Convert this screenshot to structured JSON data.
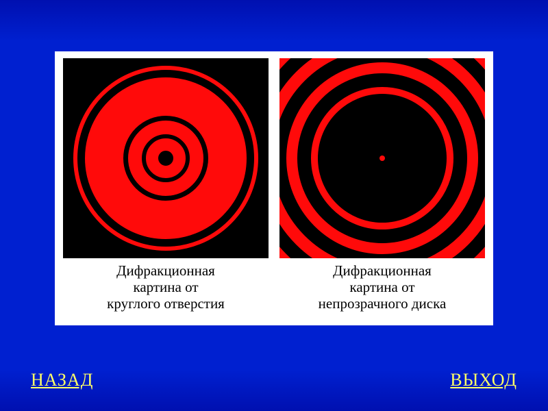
{
  "background": {
    "gradient_top": "#0010b0",
    "gradient_mid": "#0020d0"
  },
  "panel": {
    "background": "#ffffff"
  },
  "colors": {
    "ring_red": "#ff0a0a",
    "black": "#000000",
    "link": "#ffff66"
  },
  "figures": {
    "left": {
      "caption": "Дифракционная\nкартина от\nкруглого отверстия",
      "image_background": "#000000",
      "rings": [
        {
          "outer_diameter": 270,
          "border_width": 6,
          "color": "#ff0a0a"
        },
        {
          "outer_diameter": 236,
          "border_width": 56,
          "color": "#ff0a0a"
        },
        {
          "outer_diameter": 110,
          "border_width": 20,
          "color": "#ff0a0a"
        },
        {
          "outer_diameter": 58,
          "border_width": 18,
          "color": "#ff0a0a"
        }
      ]
    },
    "right": {
      "caption": "Дифракционная\nкартина от\nнепрозрачного диска",
      "image_background": "#ff0a0a",
      "solid_center": {
        "diameter": 188,
        "color": "#000000"
      },
      "center_spot": {
        "diameter": 8,
        "color": "#ff0a0a"
      },
      "black_rings": [
        {
          "outer_diameter": 248,
          "border_width": 20,
          "color": "#000000"
        },
        {
          "outer_diameter": 320,
          "border_width": 20,
          "color": "#000000"
        },
        {
          "outer_diameter": 396,
          "border_width": 20,
          "color": "#000000"
        }
      ]
    }
  },
  "nav": {
    "back_label": "НАЗАД",
    "exit_label": "ВЫХОД"
  },
  "typography": {
    "caption_fontsize": 21,
    "nav_fontsize": 26,
    "font_family": "Times New Roman"
  }
}
